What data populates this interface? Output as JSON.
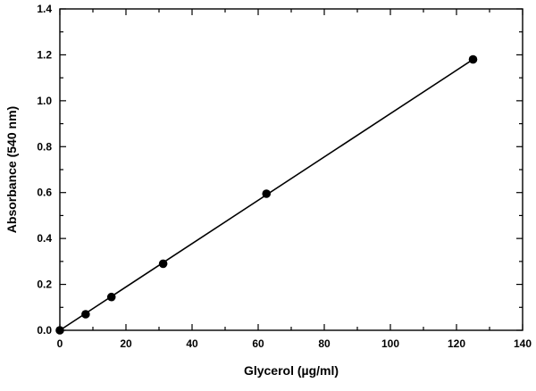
{
  "chart_data": {
    "type": "scatter",
    "title": "",
    "xlabel": "Glycerol (µg/ml)",
    "ylabel": "Absorbance (540 nm)",
    "xlim": [
      0,
      140
    ],
    "ylim": [
      0,
      1.4
    ],
    "xticks": [
      0,
      20,
      40,
      60,
      80,
      100,
      120,
      140
    ],
    "yticks": [
      0.0,
      0.2,
      0.4,
      0.6,
      0.8,
      1.0,
      1.2,
      1.4
    ],
    "xtick_labels": [
      "0",
      "20",
      "40",
      "60",
      "80",
      "100",
      "120",
      "140"
    ],
    "ytick_labels": [
      "0.0",
      "0.2",
      "0.4",
      "0.6",
      "0.8",
      "1.0",
      "1.2",
      "1.4"
    ],
    "x_minor_step": 10,
    "y_minor_step": 0.1,
    "grid": false,
    "series": [
      {
        "x": [
          0,
          7.8,
          15.6,
          31.25,
          62.5,
          125
        ],
        "y": [
          0.0,
          0.07,
          0.145,
          0.29,
          0.595,
          1.18
        ],
        "marker": "filled-circle",
        "color": "#000000"
      }
    ],
    "fit_line": {
      "x": [
        0,
        125
      ],
      "y": [
        0.0,
        1.18
      ],
      "color": "#000000"
    }
  }
}
